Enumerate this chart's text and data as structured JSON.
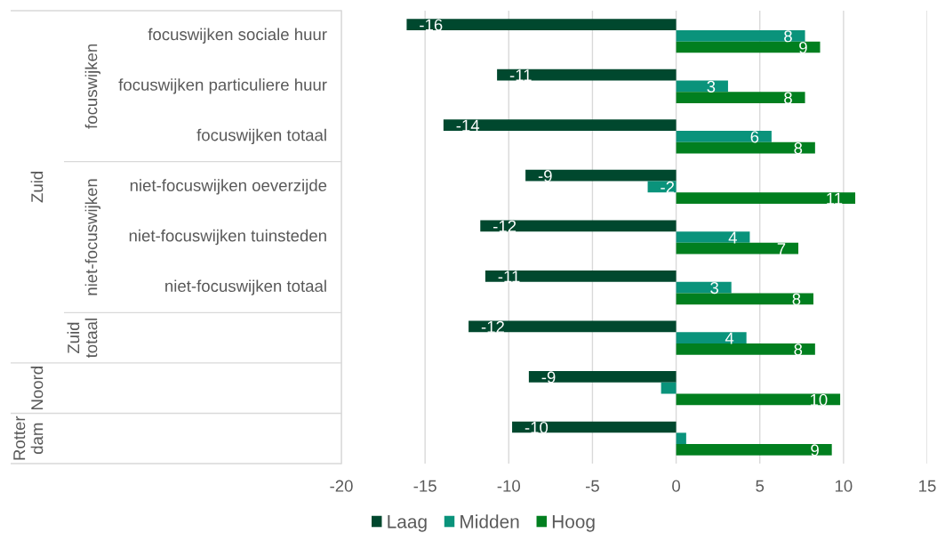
{
  "chart_data": {
    "type": "bar",
    "orientation": "horizontal",
    "categories": [
      "focuswijken sociale huur",
      "focuswijken particuliere huur",
      "focuswijken totaal",
      "niet-focuswijken oeverzijde",
      "niet-focuswijken tuinsteden",
      "niet-focuswijken totaal",
      null,
      null,
      null
    ],
    "series": [
      {
        "name": "Laag",
        "color": "#00482e",
        "values": [
          -16.1,
          -10.7,
          -13.9,
          -9.0,
          -11.7,
          -11.4,
          -12.4,
          -8.8,
          -9.8
        ],
        "value_labels": [
          "-16",
          "-11",
          "-14",
          "-9",
          "-12",
          "-11",
          "-12",
          "-9",
          "-10"
        ]
      },
      {
        "name": "Midden",
        "color": "#0a937b",
        "values": [
          7.7,
          3.1,
          5.7,
          -1.7,
          4.4,
          3.3,
          4.2,
          -0.9,
          0.6
        ],
        "value_labels": [
          "8",
          "3",
          "6",
          "-2",
          "4",
          "3",
          "4",
          null,
          null
        ]
      },
      {
        "name": "Hoog",
        "color": "#017f1f",
        "values": [
          8.6,
          7.7,
          8.3,
          10.7,
          7.3,
          8.2,
          8.3,
          9.8,
          9.3
        ],
        "value_labels": [
          "9",
          "8",
          "8",
          "11",
          "7",
          "8",
          "8",
          "10",
          "9"
        ]
      }
    ],
    "xlim": [
      -20,
      15
    ],
    "xticks": [
      -20,
      -15,
      -10,
      -5,
      0,
      5,
      10,
      15
    ],
    "grid": "x",
    "legend": "bottom",
    "annotations": [
      "focuswijken",
      "niet-focuswijken",
      "Zuid\ntotaal",
      "Zuid",
      "Noord",
      "Rotter\ndam"
    ]
  }
}
